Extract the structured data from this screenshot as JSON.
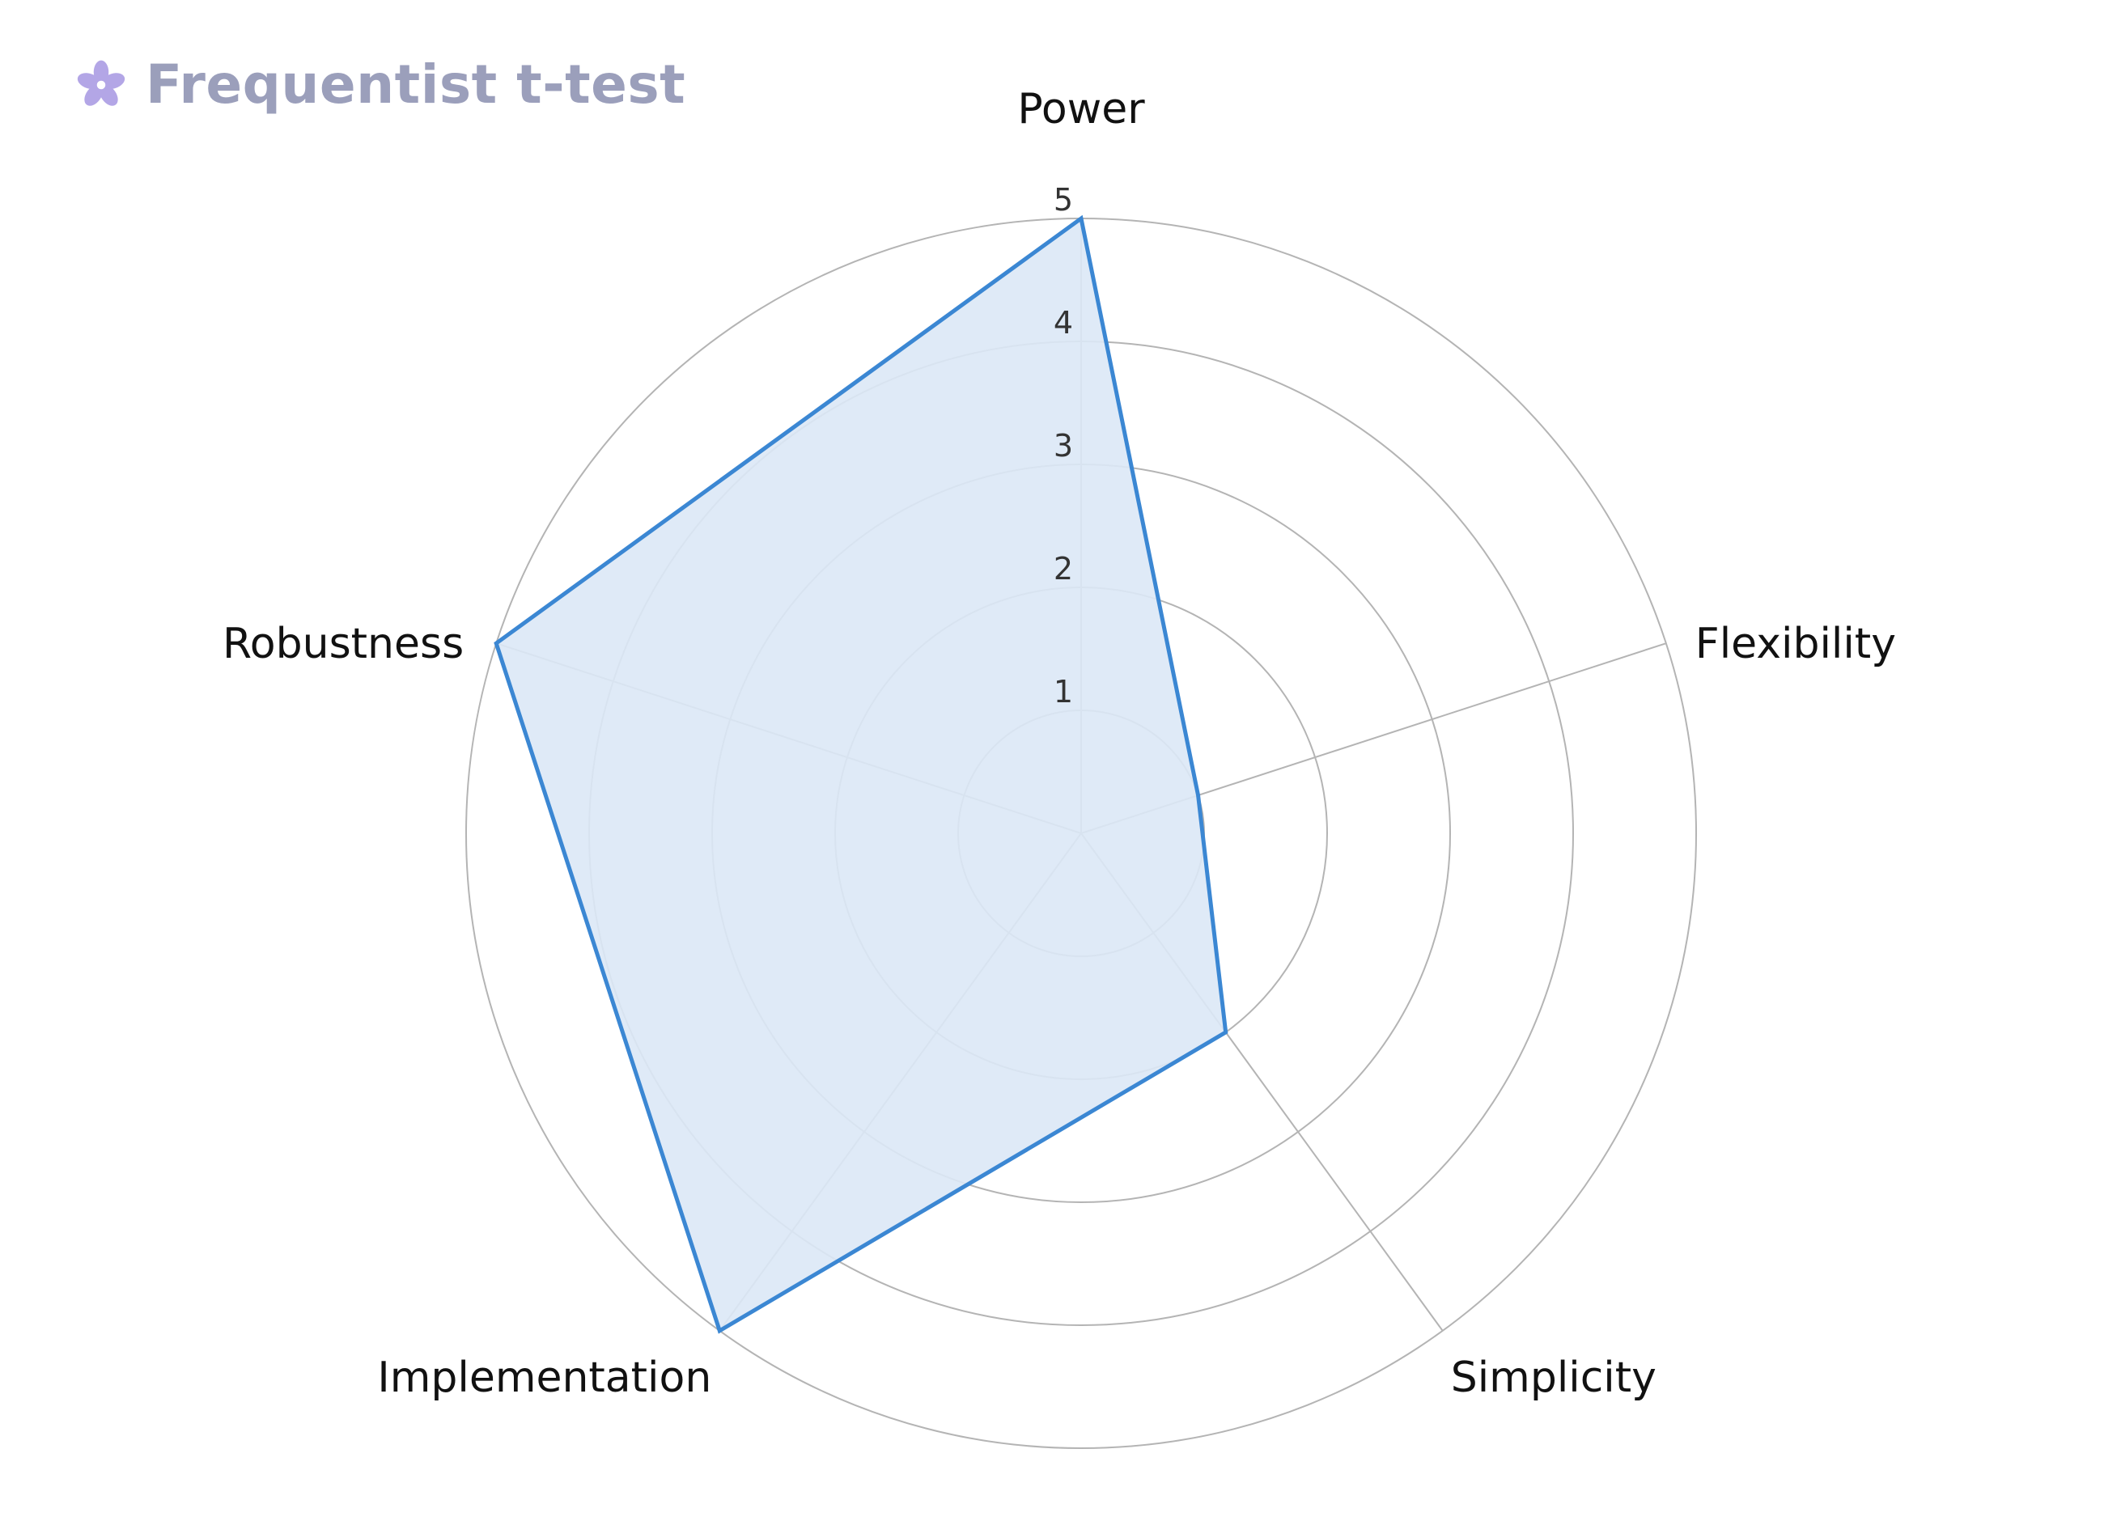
{
  "header": {
    "title": "Frequentist t-test",
    "icon": "flower-icon",
    "icon_color": "#b3a6e6"
  },
  "chart_data": {
    "type": "radar",
    "title": "Frequentist t-test",
    "axes": [
      "Power",
      "Flexibility",
      "Simplicity",
      "Implementation",
      "Robustness"
    ],
    "series": [
      {
        "values": [
          5,
          1,
          2,
          5,
          5
        ]
      }
    ],
    "range": [
      0,
      5
    ],
    "ticks": [
      "1",
      "2",
      "3",
      "4",
      "5"
    ],
    "grid": true,
    "colors": {
      "line": "#3b87d3",
      "fill": "#dce8f6",
      "grid": "#b4b4b4"
    }
  }
}
